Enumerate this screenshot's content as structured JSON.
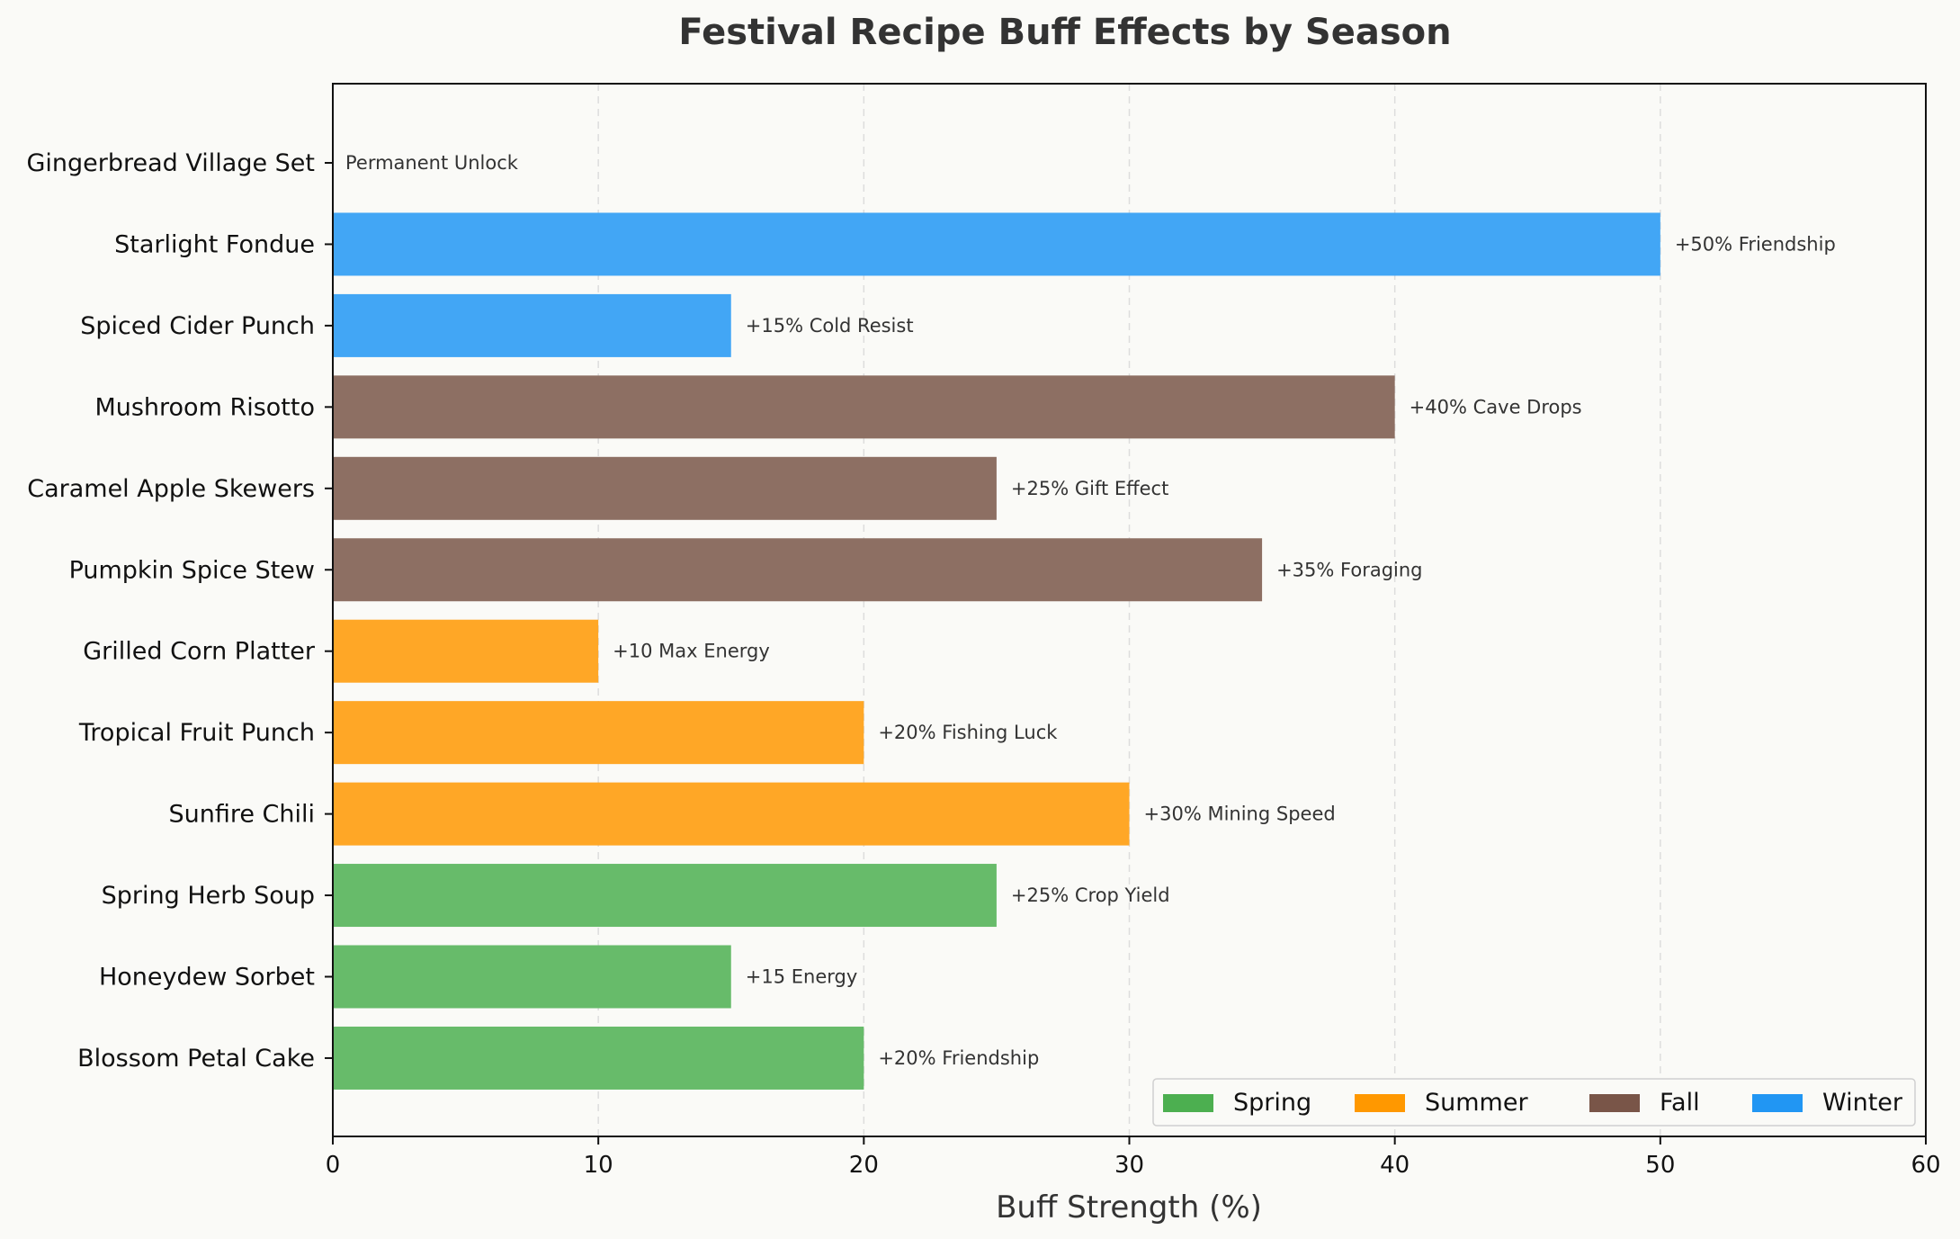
{
  "chart_data": {
    "type": "bar",
    "orientation": "horizontal",
    "title": "Festival Recipe Buff Effects by Season",
    "xlabel": "Buff Strength (%)",
    "ylabel": "",
    "xlim": [
      0,
      60
    ],
    "xticks": [
      0,
      10,
      20,
      30,
      40,
      50,
      60
    ],
    "grid": "x-dashed",
    "legend_position": "bottom-right",
    "seasons": [
      {
        "name": "Spring",
        "color": "#4caf50"
      },
      {
        "name": "Summer",
        "color": "#ff9800"
      },
      {
        "name": "Fall",
        "color": "#795548"
      },
      {
        "name": "Winter",
        "color": "#2196f3"
      }
    ],
    "bars": [
      {
        "category": "Blossom Petal Cake",
        "season": "Spring",
        "value": 20,
        "label": "+20% Friendship"
      },
      {
        "category": "Honeydew Sorbet",
        "season": "Spring",
        "value": 15,
        "label": "+15 Energy"
      },
      {
        "category": "Spring Herb Soup",
        "season": "Spring",
        "value": 25,
        "label": "+25% Crop Yield"
      },
      {
        "category": "Sunfire Chili",
        "season": "Summer",
        "value": 30,
        "label": "+30% Mining Speed"
      },
      {
        "category": "Tropical Fruit Punch",
        "season": "Summer",
        "value": 20,
        "label": "+20% Fishing Luck"
      },
      {
        "category": "Grilled Corn Platter",
        "season": "Summer",
        "value": 10,
        "label": "+10 Max Energy"
      },
      {
        "category": "Pumpkin Spice Stew",
        "season": "Fall",
        "value": 35,
        "label": "+35% Foraging"
      },
      {
        "category": "Caramel Apple Skewers",
        "season": "Fall",
        "value": 25,
        "label": "+25% Gift Effect"
      },
      {
        "category": "Mushroom Risotto",
        "season": "Fall",
        "value": 40,
        "label": "+40% Cave Drops"
      },
      {
        "category": "Spiced Cider Punch",
        "season": "Winter",
        "value": 15,
        "label": "+15% Cold Resist"
      },
      {
        "category": "Starlight Fondue",
        "season": "Winter",
        "value": 50,
        "label": "+50% Friendship"
      },
      {
        "category": "Gingerbread Village Set",
        "season": "Winter",
        "value": 0,
        "label": "Permanent Unlock"
      }
    ]
  }
}
